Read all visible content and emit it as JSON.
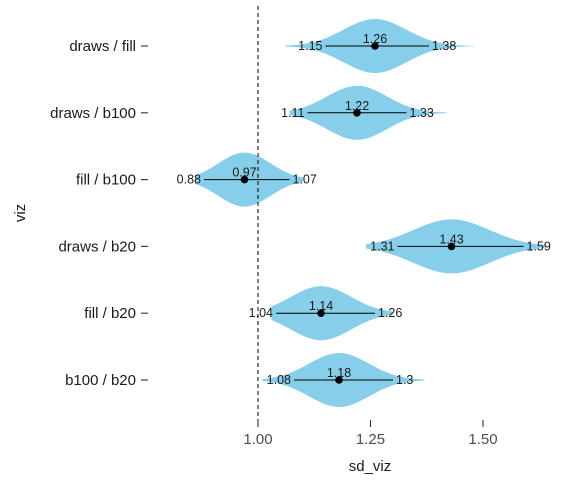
{
  "chart_data": {
    "type": "violin",
    "xlabel": "sd_viz",
    "ylabel": "viz",
    "xlim": [
      0.8,
      1.65
    ],
    "xticks": [
      {
        "value": 1.0,
        "label": "1.00"
      },
      {
        "value": 1.25,
        "label": "1.25"
      },
      {
        "value": 1.5,
        "label": "1.50"
      }
    ],
    "reference_line": {
      "x": 1.0,
      "style": "dashed"
    },
    "fill_color": "#87CEEB",
    "point_color": "#000000",
    "categories": [
      "draws / fill",
      "draws / b100",
      "fill / b100",
      "draws / b20",
      "fill / b20",
      "b100 / b20"
    ],
    "series": [
      {
        "category": "draws / fill",
        "lower": 1.15,
        "median": 1.26,
        "upper": 1.38,
        "lower_label": "1.15",
        "median_label": "1.26",
        "upper_label": "1.38",
        "min": 1.06,
        "max": 1.48,
        "halfwidth": 0.55
      },
      {
        "category": "draws / b100",
        "lower": 1.11,
        "median": 1.22,
        "upper": 1.33,
        "lower_label": "1.11",
        "median_label": "1.22",
        "upper_label": "1.33",
        "min": 1.07,
        "max": 1.42,
        "halfwidth": 0.55
      },
      {
        "category": "fill / b100",
        "lower": 0.88,
        "median": 0.97,
        "upper": 1.07,
        "lower_label": "0.88",
        "median_label": "0.97",
        "upper_label": "1.07",
        "min": 0.86,
        "max": 1.1,
        "halfwidth": 0.55
      },
      {
        "category": "draws / b20",
        "lower": 1.31,
        "median": 1.43,
        "upper": 1.59,
        "lower_label": "1.31",
        "median_label": "1.43",
        "upper_label": "1.59",
        "min": 1.24,
        "max": 1.64,
        "halfwidth": 0.55
      },
      {
        "category": "fill / b20",
        "lower": 1.04,
        "median": 1.14,
        "upper": 1.26,
        "lower_label": "1.04",
        "median_label": "1.14",
        "upper_label": "1.26",
        "min": 1.03,
        "max": 1.3,
        "halfwidth": 0.55
      },
      {
        "category": "b100 / b20",
        "lower": 1.08,
        "median": 1.18,
        "upper": 1.3,
        "lower_label": "1.08",
        "median_label": "1.18",
        "upper_label": "1.3",
        "min": 1.01,
        "max": 1.37,
        "halfwidth": 0.55
      }
    ]
  }
}
